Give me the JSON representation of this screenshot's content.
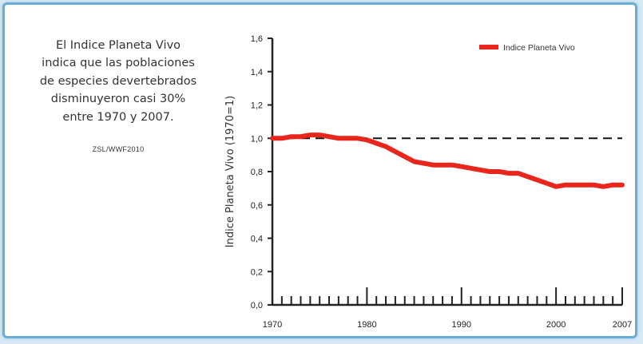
{
  "caption": {
    "lines": [
      "El Indice Planeta Vivo",
      "indica que las poblaciones",
      "de especies devertebrados",
      "disminuyeron casi 30%",
      "entre 1970 y 2007."
    ],
    "source": "ZSL/WWF2010"
  },
  "colors": {
    "series": "#e8261c",
    "border": "#6aaed6",
    "background": "#d8e9f4",
    "baseline": "#222222"
  },
  "chart_data": {
    "type": "line",
    "ylabel": "Indice Planeta Vivo (1970=1)",
    "xlabel": "",
    "xlim": [
      1970,
      2007
    ],
    "ylim": [
      0,
      1.6
    ],
    "y_ticks": [
      "0,0",
      "0,2",
      "0,4",
      "0,6",
      "0,8",
      "1,0",
      "1,2",
      "1,4",
      "1,6"
    ],
    "x_ticks": [
      "1970",
      "1980",
      "1990",
      "2000",
      "2007"
    ],
    "reference_line": {
      "y": 1.0,
      "style": "dashed"
    },
    "legend_position": "top-right",
    "grid": false,
    "series": [
      {
        "name": "Indice Planeta Vivo",
        "x": [
          1970,
          1971,
          1972,
          1973,
          1974,
          1975,
          1976,
          1977,
          1978,
          1979,
          1980,
          1981,
          1982,
          1983,
          1984,
          1985,
          1986,
          1987,
          1988,
          1989,
          1990,
          1991,
          1992,
          1993,
          1994,
          1995,
          1996,
          1997,
          1998,
          1999,
          2000,
          2001,
          2002,
          2003,
          2004,
          2005,
          2006,
          2007
        ],
        "values": [
          1.0,
          1.0,
          1.01,
          1.01,
          1.02,
          1.02,
          1.01,
          1.0,
          1.0,
          1.0,
          0.99,
          0.97,
          0.95,
          0.92,
          0.89,
          0.86,
          0.85,
          0.84,
          0.84,
          0.84,
          0.83,
          0.82,
          0.81,
          0.8,
          0.8,
          0.79,
          0.79,
          0.77,
          0.75,
          0.73,
          0.71,
          0.72,
          0.72,
          0.72,
          0.72,
          0.71,
          0.72,
          0.72
        ]
      }
    ]
  }
}
